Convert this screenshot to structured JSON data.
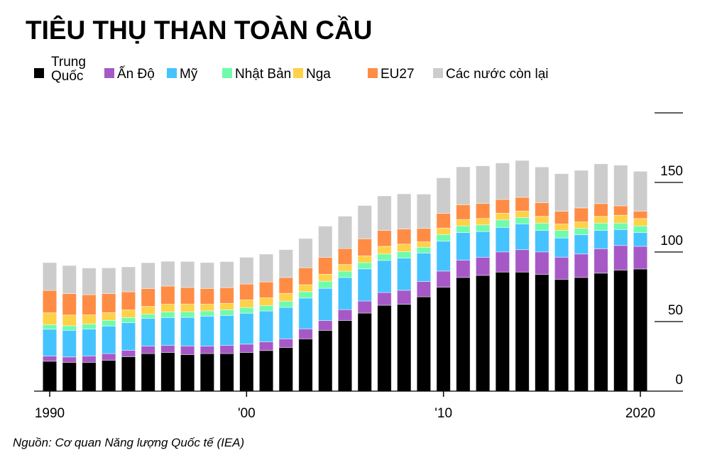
{
  "chart_data": {
    "type": "bar",
    "stacked": true,
    "title": "TIÊU THỤ THAN TOÀN CẦU",
    "source": "Nguồn: Cơ quan Năng lượng Quốc tế (IEA)",
    "x": [
      1990,
      1991,
      1992,
      1993,
      1994,
      1995,
      1996,
      1997,
      1998,
      1999,
      2000,
      2001,
      2002,
      2003,
      2004,
      2005,
      2006,
      2007,
      2008,
      2009,
      2010,
      2011,
      2012,
      2013,
      2014,
      2015,
      2016,
      2017,
      2018,
      2019,
      2020
    ],
    "x_tick_labels": [
      {
        "year": 1990,
        "label": "1990"
      },
      {
        "year": 2000,
        "label": "'00"
      },
      {
        "year": 2010,
        "label": "'10"
      },
      {
        "year": 2020,
        "label": "2020"
      }
    ],
    "y_tick_labels": [
      {
        "value": 0,
        "label": "0"
      },
      {
        "value": 50,
        "label": "50"
      },
      {
        "value": 100,
        "label": "100"
      },
      {
        "value": 150,
        "label": "150"
      },
      {
        "value": 200,
        "label": ""
      }
    ],
    "ylim": [
      0,
      200
    ],
    "y_axis_position": "right",
    "legend_position": "top-left",
    "series": [
      {
        "name": "Trung Quốc",
        "color": "#000000",
        "values": [
          21.5,
          20.7,
          20.7,
          22.2,
          24.8,
          27.0,
          27.8,
          26.3,
          27.0,
          27.0,
          27.8,
          29.2,
          31.4,
          37.6,
          43.7,
          50.8,
          56.1,
          61.7,
          62.4,
          67.8,
          74.7,
          81.7,
          83.2,
          85.6,
          85.6,
          83.9,
          80.4,
          81.7,
          84.8,
          87.0,
          87.8
        ]
      },
      {
        "name": "Ấn Độ",
        "color": "#a659c6",
        "values": [
          3.7,
          3.9,
          4.6,
          4.8,
          4.6,
          5.4,
          5.1,
          6.2,
          5.4,
          5.9,
          6.0,
          6.3,
          6.2,
          7.2,
          7.0,
          7.8,
          8.7,
          9.2,
          10.1,
          11.0,
          11.6,
          12.5,
          13.0,
          14.5,
          16.1,
          16.2,
          15.9,
          16.9,
          17.6,
          17.7,
          16.3
        ]
      },
      {
        "name": "Mỹ",
        "color": "#45c3fe",
        "values": [
          19.3,
          19.1,
          19.3,
          19.8,
          19.8,
          20.0,
          20.0,
          20.5,
          21.5,
          21.5,
          22.2,
          22.1,
          22.6,
          22.1,
          23.2,
          23.1,
          23.1,
          23.1,
          23.1,
          20.5,
          21.5,
          19.8,
          18.5,
          17.6,
          18.5,
          15.4,
          13.8,
          13.8,
          13.1,
          11.5,
          9.9
        ]
      },
      {
        "name": "Nhật Bản",
        "color": "#70fbac",
        "values": [
          3.2,
          3.3,
          3.7,
          4.1,
          3.7,
          2.9,
          4.1,
          4.1,
          3.8,
          4.1,
          4.1,
          3.9,
          4.5,
          4.6,
          5.1,
          4.5,
          4.5,
          4.6,
          4.6,
          4.1,
          4.8,
          4.8,
          4.8,
          5.4,
          4.6,
          5.3,
          5.4,
          4.6,
          5.3,
          4.6,
          4.8
        ]
      },
      {
        "name": "Nga",
        "color": "#ffd147",
        "values": [
          8.6,
          7.7,
          6.5,
          5.5,
          5.5,
          5.6,
          5.5,
          5.5,
          4.8,
          4.6,
          5.5,
          5.6,
          5.6,
          5.0,
          5.0,
          4.8,
          4.8,
          5.5,
          5.5,
          3.9,
          4.6,
          4.6,
          4.6,
          4.8,
          4.6,
          4.8,
          4.6,
          4.6,
          4.8,
          5.6,
          5.3
        ]
      },
      {
        "name": "EU27",
        "color": "#ff8c45",
        "values": [
          16.1,
          15.4,
          14.5,
          13.7,
          13.0,
          12.8,
          13.0,
          11.9,
          11.3,
          11.3,
          11.4,
          11.4,
          11.4,
          12.2,
          12.2,
          11.5,
          12.3,
          11.4,
          10.8,
          9.7,
          10.6,
          10.6,
          10.8,
          9.9,
          9.9,
          9.9,
          9.2,
          10.1,
          9.2,
          6.8,
          5.3
        ]
      },
      {
        "name": "Các nước còn lại",
        "color": "#cccccc",
        "values": [
          20.0,
          20.2,
          19.2,
          18.5,
          17.9,
          18.6,
          17.8,
          18.7,
          18.6,
          18.7,
          19.2,
          20.0,
          20.0,
          21.0,
          22.4,
          23.2,
          23.9,
          24.8,
          25.3,
          24.6,
          25.5,
          27.2,
          27.0,
          26.2,
          26.5,
          25.6,
          27.0,
          27.0,
          28.6,
          29.2,
          28.6
        ]
      }
    ]
  }
}
